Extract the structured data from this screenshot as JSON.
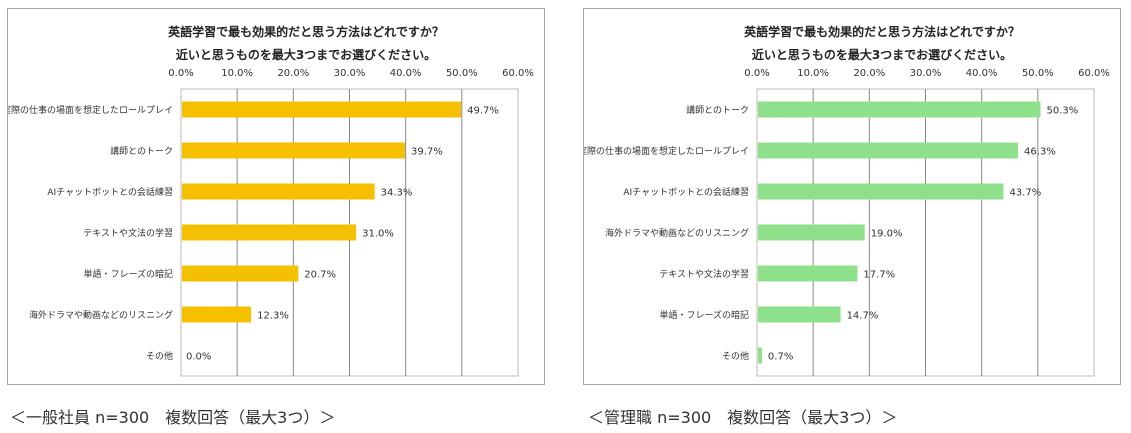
{
  "chart_data": [
    {
      "type": "bar",
      "orientation": "horizontal",
      "title": [
        "英語学習で最も効果的だと思う方法はどれですか？",
        "近いと思うものを最大3つまでお選びください。"
      ],
      "caption": "＜一般社員 n=300　複数回答（最大3つ）＞",
      "color": "#f5c000",
      "xlim": [
        0,
        60
      ],
      "ticks": [
        "0.0%",
        "10.0%",
        "20.0%",
        "30.0%",
        "40.0%",
        "50.0%",
        "60.0%"
      ],
      "categories": [
        "実際の仕事の場面を想定したロールプレイ",
        "講師とのトーク",
        "AIチャットボットとの会話練習",
        "テキストや文法の学習",
        "単語・フレーズの暗記",
        "海外ドラマや動画などのリスニング",
        "その他"
      ],
      "values": [
        49.7,
        39.7,
        34.3,
        31.0,
        20.7,
        12.3,
        0.0
      ],
      "labels": [
        "49.7%",
        "39.7%",
        "34.3%",
        "31.0%",
        "20.7%",
        "12.3%",
        "0.0%"
      ]
    },
    {
      "type": "bar",
      "orientation": "horizontal",
      "title": [
        "英語学習で最も効果的だと思う方法はどれですか？",
        "近いと思うものを最大3つまでお選びください。"
      ],
      "caption": "＜管理職 n=300　複数回答（最大3つ）＞",
      "color": "#8fe08a",
      "xlim": [
        0,
        60
      ],
      "ticks": [
        "0.0%",
        "10.0%",
        "20.0%",
        "30.0%",
        "40.0%",
        "50.0%",
        "60.0%"
      ],
      "categories": [
        "講師とのトーク",
        "実際の仕事の場面を想定したロールプレイ",
        "AIチャットボットとの会話練習",
        "海外ドラマや動画などのリスニング",
        "テキストや文法の学習",
        "単語・フレーズの暗記",
        "その他"
      ],
      "values": [
        50.3,
        46.3,
        43.7,
        19.0,
        17.7,
        14.7,
        0.7
      ],
      "labels": [
        "50.3%",
        "46.3%",
        "43.7%",
        "19.0%",
        "17.7%",
        "14.7%",
        "0.7%"
      ]
    }
  ]
}
